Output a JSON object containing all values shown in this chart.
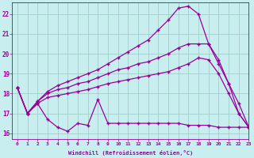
{
  "xlabel": "Windchill (Refroidissement éolien,°C)",
  "xlim": [
    -0.5,
    23
  ],
  "ylim": [
    15.7,
    22.6
  ],
  "yticks": [
    16,
    17,
    18,
    19,
    20,
    21,
    22
  ],
  "xticks": [
    0,
    1,
    2,
    3,
    4,
    5,
    6,
    7,
    8,
    9,
    10,
    11,
    12,
    13,
    14,
    15,
    16,
    17,
    18,
    19,
    20,
    21,
    22,
    23
  ],
  "bg_color": "#c8eef0",
  "line_color": "#990099",
  "grid_color": "#a0cec8",
  "line1_x": [
    0,
    1,
    2,
    3,
    4,
    5,
    6,
    7,
    8,
    9,
    10,
    11,
    12,
    13,
    14,
    15,
    16,
    17,
    18,
    19,
    20,
    21,
    22,
    23
  ],
  "line1_y": [
    18.3,
    17.0,
    17.5,
    16.7,
    16.3,
    16.1,
    16.5,
    16.4,
    17.7,
    16.5,
    16.5,
    16.5,
    16.5,
    16.5,
    16.5,
    16.5,
    16.5,
    16.4,
    16.4,
    16.4,
    16.3,
    16.3,
    16.3,
    16.3
  ],
  "line2_x": [
    0,
    1,
    2,
    3,
    4,
    5,
    6,
    7,
    8,
    9,
    10,
    11,
    12,
    13,
    14,
    15,
    16,
    17,
    18,
    19,
    20,
    21,
    22,
    23
  ],
  "line2_y": [
    18.3,
    17.0,
    17.5,
    17.8,
    17.9,
    18.0,
    18.1,
    18.2,
    18.35,
    18.5,
    18.6,
    18.7,
    18.8,
    18.9,
    19.0,
    19.1,
    19.3,
    19.5,
    19.8,
    19.7,
    19.0,
    18.0,
    17.0,
    16.3
  ],
  "line3_x": [
    0,
    1,
    2,
    3,
    4,
    5,
    6,
    7,
    8,
    9,
    10,
    11,
    12,
    13,
    14,
    15,
    16,
    17,
    18,
    19,
    20,
    21,
    22,
    23
  ],
  "line3_y": [
    18.3,
    17.0,
    17.6,
    18.0,
    18.2,
    18.3,
    18.5,
    18.6,
    18.8,
    19.0,
    19.2,
    19.3,
    19.5,
    19.6,
    19.8,
    20.0,
    20.3,
    20.5,
    20.5,
    20.5,
    19.7,
    18.5,
    17.5,
    16.3
  ],
  "line4_x": [
    0,
    1,
    2,
    3,
    4,
    5,
    6,
    7,
    8,
    9,
    10,
    11,
    12,
    13,
    14,
    15,
    16,
    17,
    18,
    19,
    20,
    21,
    22,
    23
  ],
  "line4_y": [
    18.3,
    17.0,
    17.6,
    18.1,
    18.4,
    18.6,
    18.8,
    19.0,
    19.2,
    19.5,
    19.8,
    20.1,
    20.4,
    20.7,
    21.2,
    21.7,
    22.3,
    22.4,
    22.0,
    20.5,
    19.5,
    18.5,
    17.0,
    16.3
  ]
}
